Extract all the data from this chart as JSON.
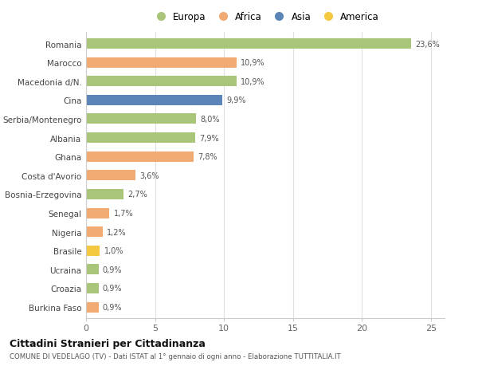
{
  "categories": [
    "Romania",
    "Marocco",
    "Macedonia d/N.",
    "Cina",
    "Serbia/Montenegro",
    "Albania",
    "Ghana",
    "Costa d'Avorio",
    "Bosnia-Erzegovina",
    "Senegal",
    "Nigeria",
    "Brasile",
    "Ucraina",
    "Croazia",
    "Burkina Faso"
  ],
  "values": [
    23.6,
    10.9,
    10.9,
    9.9,
    8.0,
    7.9,
    7.8,
    3.6,
    2.7,
    1.7,
    1.2,
    1.0,
    0.9,
    0.9,
    0.9
  ],
  "labels": [
    "23,6%",
    "10,9%",
    "10,9%",
    "9,9%",
    "8,0%",
    "7,9%",
    "7,8%",
    "3,6%",
    "2,7%",
    "1,7%",
    "1,2%",
    "1,0%",
    "0,9%",
    "0,9%",
    "0,9%"
  ],
  "continents": [
    "Europa",
    "Africa",
    "Europa",
    "Asia",
    "Europa",
    "Europa",
    "Africa",
    "Africa",
    "Europa",
    "Africa",
    "Africa",
    "America",
    "Europa",
    "Europa",
    "Africa"
  ],
  "colors": {
    "Europa": "#a8c57a",
    "Africa": "#f0aa72",
    "Asia": "#5b85b8",
    "America": "#f5c842"
  },
  "legend_order": [
    "Europa",
    "Africa",
    "Asia",
    "America"
  ],
  "title": "Cittadini Stranieri per Cittadinanza",
  "subtitle": "COMUNE DI VEDELAGO (TV) - Dati ISTAT al 1° gennaio di ogni anno - Elaborazione TUTTITALIA.IT",
  "xlim": [
    0,
    26
  ],
  "xticks": [
    0,
    5,
    10,
    15,
    20,
    25
  ],
  "background_color": "#ffffff",
  "bar_height": 0.55,
  "grid_color": "#e0e0e0"
}
